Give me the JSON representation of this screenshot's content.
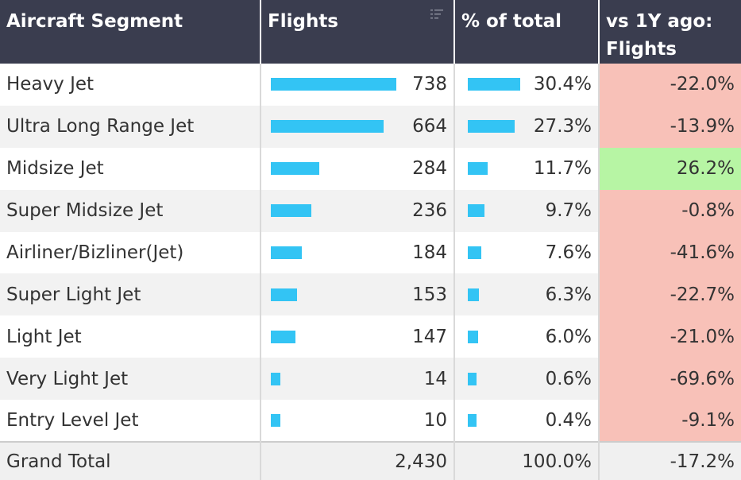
{
  "headers": {
    "segment": "Aircraft Segment",
    "flights": "Flights",
    "pct": "% of total",
    "vs1y_line1": "vs 1Y ago:",
    "vs1y_line2": "Flights"
  },
  "rows": [
    {
      "segment": "Heavy Jet",
      "flights": "738",
      "flights_value": 738,
      "pct": "30.4%",
      "pct_value": 30.4,
      "vs1y": "-22.0%",
      "trend": "neg"
    },
    {
      "segment": "Ultra Long Range Jet",
      "flights": "664",
      "flights_value": 664,
      "pct": "27.3%",
      "pct_value": 27.3,
      "vs1y": "-13.9%",
      "trend": "neg"
    },
    {
      "segment": "Midsize Jet",
      "flights": "284",
      "flights_value": 284,
      "pct": "11.7%",
      "pct_value": 11.7,
      "vs1y": "26.2%",
      "trend": "pos"
    },
    {
      "segment": "Super Midsize Jet",
      "flights": "236",
      "flights_value": 236,
      "pct": "9.7%",
      "pct_value": 9.7,
      "vs1y": "-0.8%",
      "trend": "neg"
    },
    {
      "segment": "Airliner/Bizliner(Jet)",
      "flights": "184",
      "flights_value": 184,
      "pct": "7.6%",
      "pct_value": 7.6,
      "vs1y": "-41.6%",
      "trend": "neg"
    },
    {
      "segment": "Super Light Jet",
      "flights": "153",
      "flights_value": 153,
      "pct": "6.3%",
      "pct_value": 6.3,
      "vs1y": "-22.7%",
      "trend": "neg"
    },
    {
      "segment": "Light Jet",
      "flights": "147",
      "flights_value": 147,
      "pct": "6.0%",
      "pct_value": 6.0,
      "vs1y": "-21.0%",
      "trend": "neg"
    },
    {
      "segment": "Very Light Jet",
      "flights": "14",
      "flights_value": 14,
      "pct": "0.6%",
      "pct_value": 0.6,
      "vs1y": "-69.6%",
      "trend": "neg"
    },
    {
      "segment": "Entry Level Jet",
      "flights": "10",
      "flights_value": 10,
      "pct": "0.4%",
      "pct_value": 0.4,
      "vs1y": "-9.1%",
      "trend": "neg"
    }
  ],
  "total": {
    "label": "Grand Total",
    "flights": "2,430",
    "pct": "100.0%",
    "vs1y": "-17.2%"
  },
  "colors": {
    "header_bg": "#3a3d4f",
    "bar": "#33c4f4",
    "negative_bg": "#f8c1b8",
    "positive_bg": "#b7f5a4"
  },
  "icons": {
    "flights_header": "sort-descending-icon"
  }
}
